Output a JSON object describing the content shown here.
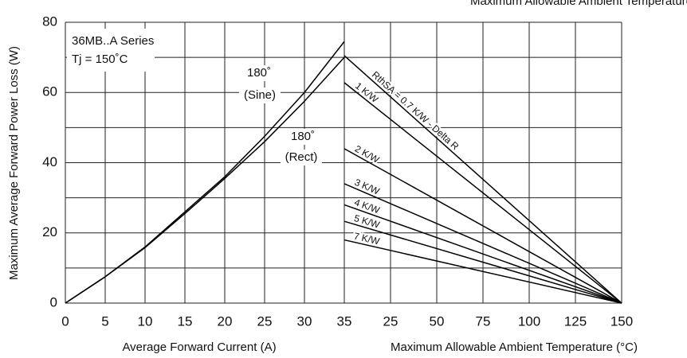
{
  "chart_data": [
    {
      "type": "line",
      "y_label": "Maximum Average Forward Power Loss (W)",
      "x_label": "Average Forward Current (A)",
      "annotations": [
        "36MB..A Series",
        "Tj = 150˚C",
        "180˚",
        "(Sine)",
        "180˚",
        "(Rect)"
      ],
      "x": [
        0,
        5,
        10,
        15,
        20,
        25,
        30,
        35
      ],
      "series": [
        {
          "name": "Sine",
          "color": "#000000",
          "values": [
            0,
            7.5,
            16,
            26,
            36,
            47.5,
            60,
            74.5
          ]
        },
        {
          "name": "Rect",
          "color": "#000000",
          "values": [
            0,
            7.5,
            15.8,
            25.5,
            35.5,
            46,
            57.5,
            70
          ]
        }
      ],
      "xlim": [
        0,
        35
      ],
      "xticks": [
        0,
        5,
        10,
        15,
        20,
        25,
        30,
        35
      ],
      "ylim": [
        0,
        80
      ],
      "yticks": [
        0,
        20,
        40,
        60,
        80
      ],
      "ygrid": [
        10,
        30,
        50,
        70
      ],
      "grid": true
    },
    {
      "type": "line",
      "x_label": "Maximum Allowable Ambient Temperature (°C)",
      "x": [
        0,
        150
      ],
      "series": [
        {
          "name": "RthSA = 0.7 K/W - Delta R",
          "color": "#000000",
          "values": [
            70.5,
            0
          ]
        },
        {
          "name": "1 K/W",
          "color": "#000000",
          "values": [
            62.8,
            0
          ]
        },
        {
          "name": "2 K/W",
          "color": "#000000",
          "values": [
            44,
            0
          ]
        },
        {
          "name": "3 K/W",
          "color": "#000000",
          "values": [
            34,
            0
          ]
        },
        {
          "name": "4 K/W",
          "color": "#000000",
          "values": [
            28,
            0
          ]
        },
        {
          "name": "5 K/W",
          "color": "#000000",
          "values": [
            23.3,
            0
          ]
        },
        {
          "name": "7 K/W",
          "color": "#000000",
          "values": [
            18,
            0
          ]
        }
      ],
      "xlim": [
        0,
        150
      ],
      "xticks": [
        25,
        50,
        75,
        100,
        125,
        150
      ],
      "ylim": [
        0,
        80
      ],
      "grid": true
    }
  ]
}
